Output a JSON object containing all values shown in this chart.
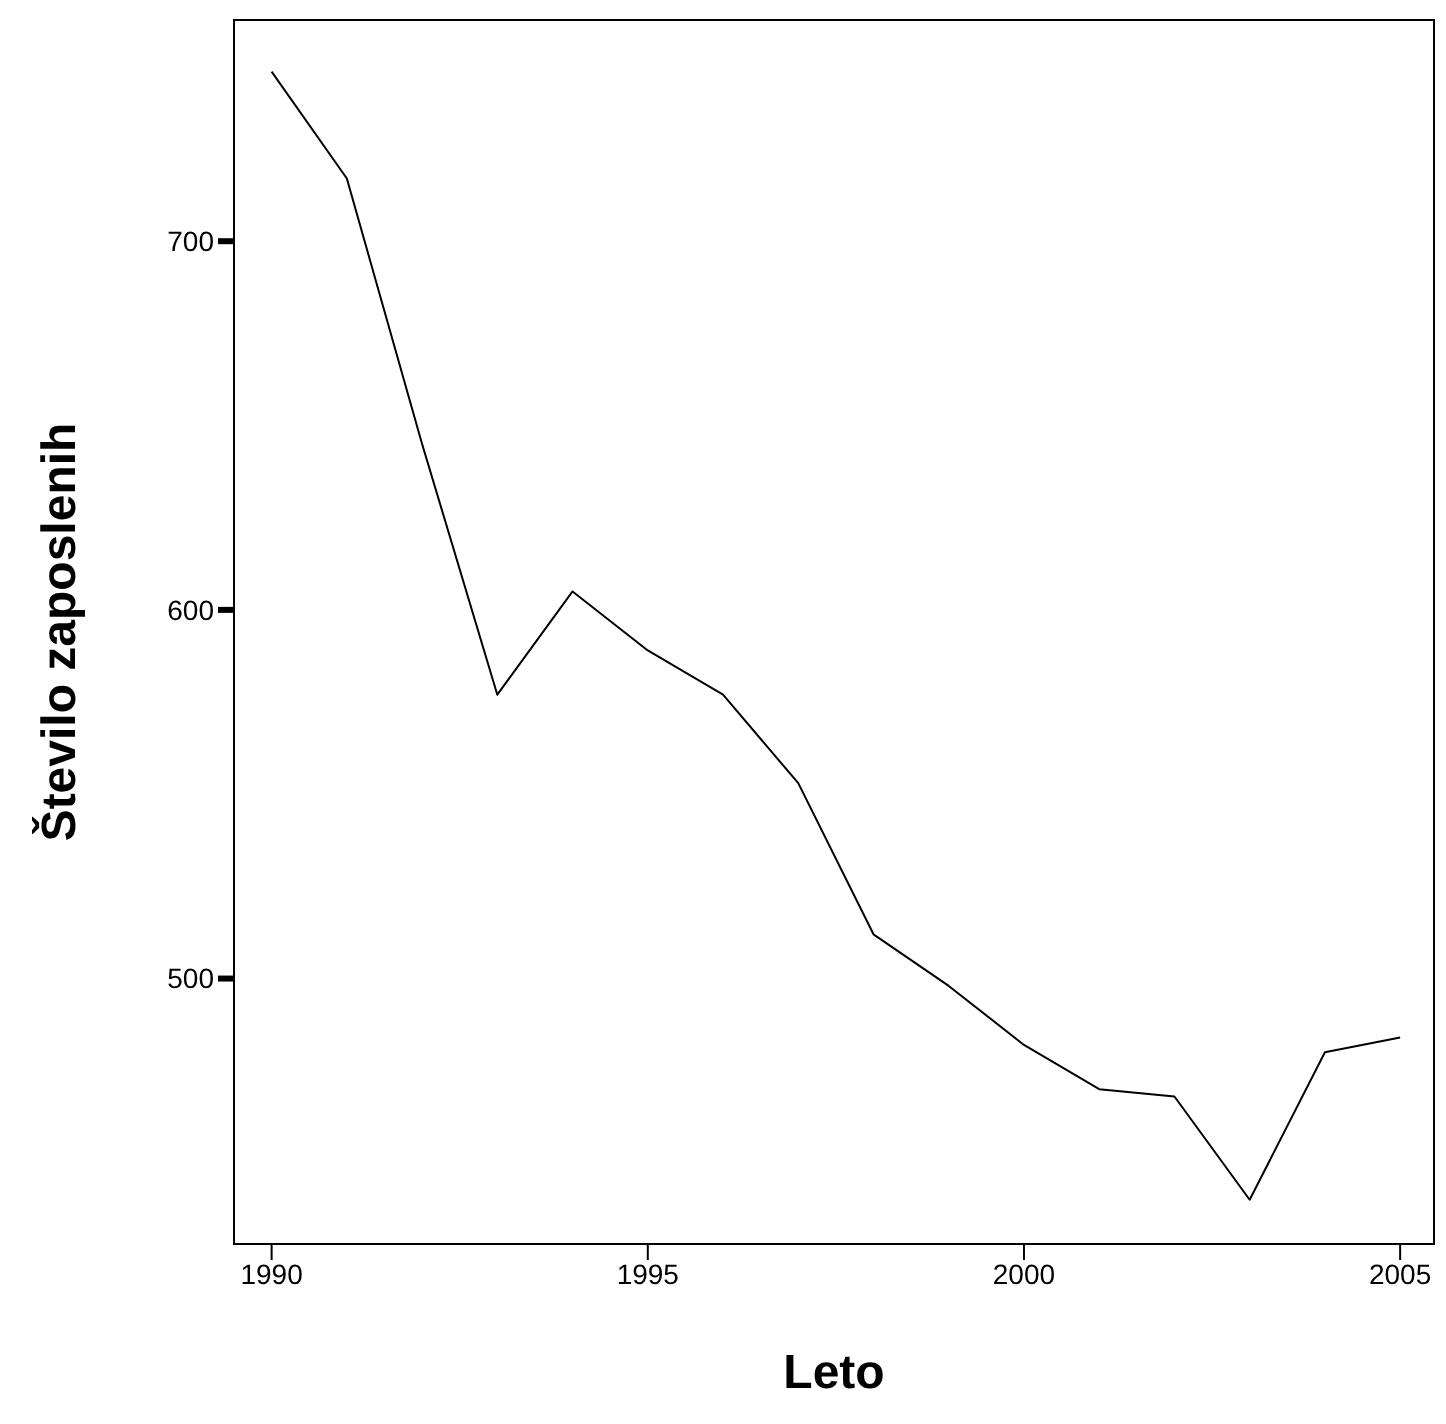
{
  "chart_data": {
    "type": "line",
    "xlabel": "Leto",
    "ylabel": "Število zaposlenih",
    "x": [
      1990,
      1991,
      1992,
      1993,
      1994,
      1995,
      1996,
      1997,
      1998,
      1999,
      2000,
      2001,
      2002,
      2003,
      2004,
      2005
    ],
    "series": [
      {
        "color": "#000000",
        "values": [
          746,
          717,
          645,
          577,
          605,
          589,
          577,
          553,
          512,
          498,
          482,
          470,
          468,
          440,
          480,
          484
        ]
      }
    ],
    "xlim": [
      1989.5,
      2005.45
    ],
    "xticks": [
      1990,
      1995,
      2000,
      2005
    ],
    "ylim": [
      428,
      760
    ],
    "yticks": [
      500,
      600,
      700
    ],
    "marker": "none",
    "line_style": "solid"
  }
}
